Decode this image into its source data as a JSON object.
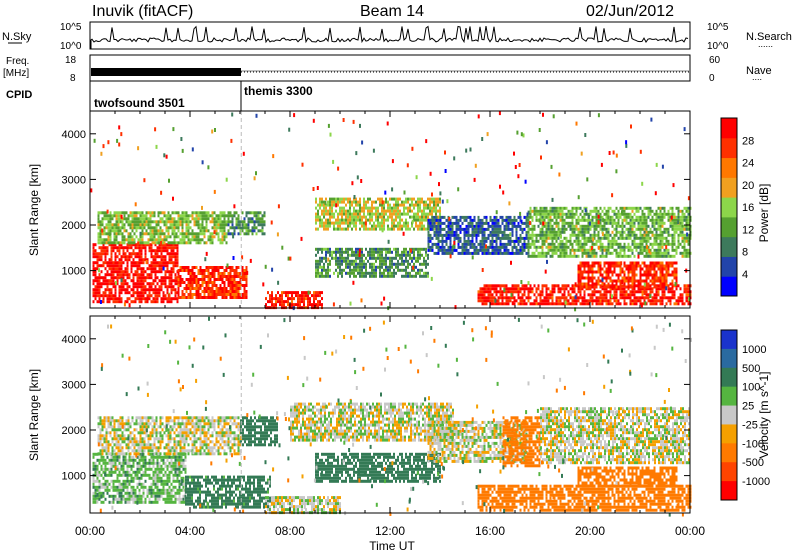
{
  "header": {
    "station": "Inuvik (fitACF)",
    "beam": "Beam 14",
    "date": "02/Jun/2012"
  },
  "nsky_panel": {
    "left_label": "N.Sky",
    "left_ticks": [
      "10^5",
      "10^0"
    ],
    "right_ticks": [
      "10^5",
      "10^0"
    ],
    "right_label": "N.Search",
    "right_label_dots": "......"
  },
  "freq_panel": {
    "left_label_line1": "Freq.",
    "left_label_line2": "[MHz]",
    "left_ticks": [
      "18",
      "8"
    ],
    "right_ticks": [
      "60",
      "0"
    ],
    "right_label": "Nave",
    "right_label_dots": "...."
  },
  "cpid_panel": {
    "label": "CPID",
    "modes": [
      {
        "name": "twofsound 3501",
        "start_hour": 0,
        "end_hour": 6.05
      },
      {
        "name": "themis 3300",
        "start_hour": 6.05,
        "end_hour": 24
      }
    ]
  },
  "colors": {
    "power_scale": [
      "#0000ff",
      "#2244aa",
      "#3d7a5c",
      "#55a030",
      "#8cd64a",
      "#f0a020",
      "#ff7800",
      "#ff3000",
      "#ff0000"
    ],
    "velocity_scale": [
      "#1a33cc",
      "#2a6aa0",
      "#337a55",
      "#55b540",
      "#c8c8c8",
      "#f5a000",
      "#ff7a00",
      "#ff4400",
      "#ff0000"
    ],
    "axis": "#000000",
    "text": "#000000"
  },
  "chart_data": [
    {
      "type": "heatmap",
      "panel": "power",
      "title": "",
      "ylabel": "Slant Range [km]",
      "xlabel": "",
      "xlim": [
        0,
        24
      ],
      "ylim": [
        180,
        4500
      ],
      "yticks": [
        "1000",
        "2000",
        "3000",
        "4000"
      ],
      "colorbar": {
        "label": "Power [dB]",
        "ticks": [
          "4",
          "8",
          "12",
          "16",
          "20",
          "24",
          "28"
        ],
        "range": [
          0,
          30
        ]
      },
      "regions": [
        {
          "t0": 0.1,
          "t1": 3.5,
          "r0": 300,
          "r1": 1600,
          "value": 28
        },
        {
          "t0": 3.5,
          "t1": 6.3,
          "r0": 400,
          "r1": 1100,
          "value": 26
        },
        {
          "t0": 0.3,
          "t1": 5.5,
          "r0": 1600,
          "r1": 2300,
          "value": 14
        },
        {
          "t0": 5.5,
          "t1": 7.0,
          "r0": 1800,
          "r1": 2300,
          "value": 10
        },
        {
          "t0": 7.0,
          "t1": 9.3,
          "r0": 200,
          "r1": 550,
          "value": 27
        },
        {
          "t0": 9.0,
          "t1": 14.0,
          "r0": 1900,
          "r1": 2600,
          "value": 16
        },
        {
          "t0": 9.0,
          "t1": 13.5,
          "r0": 900,
          "r1": 1500,
          "value": 10
        },
        {
          "t0": 13.5,
          "t1": 17.5,
          "r0": 1400,
          "r1": 2200,
          "value": 6
        },
        {
          "t0": 15.5,
          "t1": 24.0,
          "r0": 250,
          "r1": 700,
          "value": 27
        },
        {
          "t0": 19.5,
          "t1": 23.5,
          "r0": 650,
          "r1": 1200,
          "value": 26
        },
        {
          "t0": 17.5,
          "t1": 24.0,
          "r0": 1300,
          "r1": 2400,
          "value": 13
        }
      ]
    },
    {
      "type": "heatmap",
      "panel": "velocity",
      "title": "",
      "ylabel": "Slant Range [km]",
      "xlabel": "Time UT",
      "xlim": [
        0,
        24
      ],
      "ylim": [
        180,
        4500
      ],
      "xticks": [
        "00:00",
        "04:00",
        "08:00",
        "12:00",
        "16:00",
        "20:00",
        "00:00"
      ],
      "yticks": [
        "1000",
        "2000",
        "3000",
        "4000"
      ],
      "colorbar": {
        "label": "Velocity [m s^-1]",
        "ticks": [
          "1000",
          "500",
          "100",
          "25",
          "-25",
          "-100",
          "-500",
          "-1000"
        ]
      },
      "regions": [
        {
          "t0": 0.1,
          "t1": 3.8,
          "r0": 400,
          "r1": 1500,
          "value": 60
        },
        {
          "t0": 3.8,
          "t1": 7.2,
          "r0": 300,
          "r1": 1000,
          "value": 150
        },
        {
          "t0": 0.3,
          "t1": 6.0,
          "r0": 1500,
          "r1": 2300,
          "value": 0
        },
        {
          "t0": 6.0,
          "t1": 7.5,
          "r0": 1700,
          "r1": 2300,
          "value": 200
        },
        {
          "t0": 7.0,
          "t1": 10.0,
          "r0": 200,
          "r1": 550,
          "value": 0
        },
        {
          "t0": 9.0,
          "t1": 14.0,
          "r0": 900,
          "r1": 1500,
          "value": 400
        },
        {
          "t0": 8.0,
          "t1": 14.5,
          "r0": 1800,
          "r1": 2600,
          "value": 0
        },
        {
          "t0": 13.5,
          "t1": 17.5,
          "r0": 1300,
          "r1": 2200,
          "value": 0
        },
        {
          "t0": 15.5,
          "t1": 24.0,
          "r0": 250,
          "r1": 800,
          "value": -400
        },
        {
          "t0": 19.5,
          "t1": 23.5,
          "r0": 800,
          "r1": 1200,
          "value": -300
        },
        {
          "t0": 16.5,
          "t1": 18.0,
          "r0": 1200,
          "r1": 2300,
          "value": -200
        },
        {
          "t0": 18.0,
          "t1": 24.0,
          "r0": 1300,
          "r1": 2500,
          "value": 0
        }
      ]
    }
  ]
}
